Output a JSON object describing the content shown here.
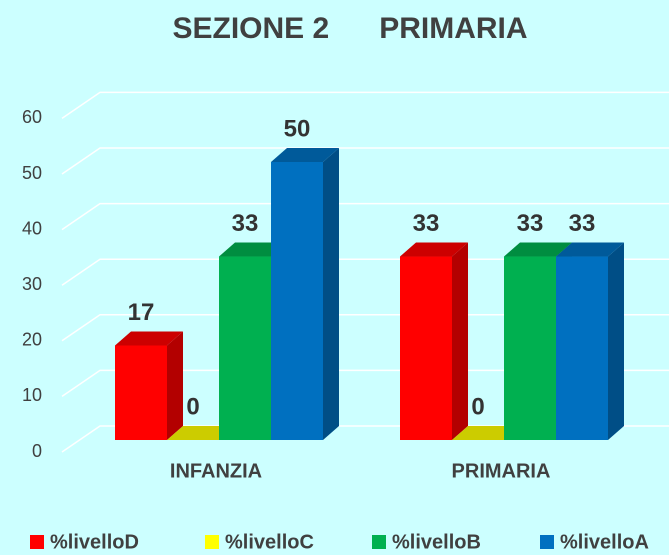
{
  "chart_data": {
    "type": "bar",
    "title": "SEZIONE 2      PRIMARIA",
    "categories": [
      "INFANZIA",
      "PRIMARIA"
    ],
    "series": [
      {
        "name": "%livelloD",
        "color": "#ff0000",
        "values": [
          17,
          33
        ]
      },
      {
        "name": "%livelloC",
        "color": "#ffff00",
        "values": [
          0,
          0
        ]
      },
      {
        "name": "%livelloB",
        "color": "#00b050",
        "values": [
          33,
          33
        ]
      },
      {
        "name": "%livelloA",
        "color": "#0070c0",
        "values": [
          50,
          33
        ]
      }
    ],
    "ylim": [
      0,
      60
    ],
    "yticks": [
      0,
      10,
      20,
      30,
      40,
      50,
      60
    ],
    "grid": true,
    "legend": "bottom"
  }
}
